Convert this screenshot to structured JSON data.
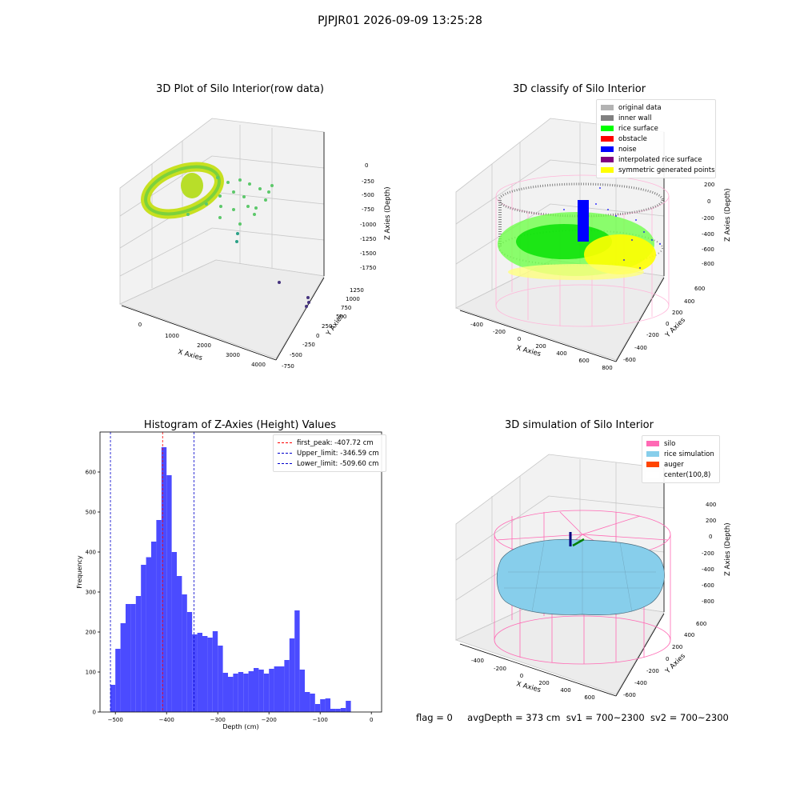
{
  "header": {
    "title": "PJPJR01 2026-09-09 13:25:28"
  },
  "panels": {
    "raw": {
      "title": "3D Plot of Silo Interior(row data)",
      "xlabel": "X Axies",
      "ylabel": "Y Axies",
      "zlabel": "Z Axies (Depth)",
      "xticks": [
        "0",
        "1000",
        "2000",
        "3000",
        "4000"
      ],
      "yticks": [
        "1250",
        "1000",
        "750",
        "500",
        "250",
        "0",
        "-250",
        "-500",
        "-750"
      ],
      "zticks": [
        "0",
        "-250",
        "-500",
        "-750",
        "-1000",
        "-1250",
        "-1500",
        "-1750"
      ]
    },
    "classify": {
      "title": "3D classify of Silo Interior",
      "xlabel": "X Axies",
      "ylabel": "Y Axies",
      "zlabel": "Z Axies (Depth)",
      "xticks": [
        "-400",
        "-200",
        "0",
        "200",
        "400",
        "600",
        "800"
      ],
      "yticks": [
        "600",
        "400",
        "200",
        "0",
        "-200",
        "-400",
        "-600"
      ],
      "zticks": [
        "200",
        "0",
        "-200",
        "-400",
        "-600",
        "-800"
      ],
      "legend": [
        {
          "label": "original data",
          "color": "#b3b3b3"
        },
        {
          "label": "inner wall",
          "color": "#808080"
        },
        {
          "label": "rice surface",
          "color": "#00ff00"
        },
        {
          "label": "obstacle",
          "color": "#ff0000"
        },
        {
          "label": "noise",
          "color": "#0000ff"
        },
        {
          "label": "interpolated rice surface",
          "color": "#800080"
        },
        {
          "label": "symmetric generated points",
          "color": "#ffff00"
        }
      ]
    },
    "simulation": {
      "title": "3D simulation of Silo Interior",
      "xlabel": "X Axies",
      "ylabel": "Y Axies",
      "zlabel": "Z Axies (Depth)",
      "xticks": [
        "-400",
        "-200",
        "0",
        "200",
        "400",
        "600"
      ],
      "yticks": [
        "600",
        "400",
        "200",
        "0",
        "-200",
        "-400",
        "-600"
      ],
      "zticks": [
        "400",
        "200",
        "0",
        "-200",
        "-400",
        "-600",
        "-800"
      ],
      "legend": [
        {
          "label": "silo",
          "color": "#ff69b4"
        },
        {
          "label": "rice simulation",
          "color": "#87ceeb"
        },
        {
          "label": "auger",
          "color": "#ff4500"
        },
        {
          "label": "center(100,8)",
          "color": "#ffffff"
        }
      ]
    }
  },
  "footer": {
    "flag": "flag = 0",
    "avg_depth": "avgDepth = 373 cm",
    "sv1": "sv1 = 700~2300",
    "sv2": "sv2 = 700~2300"
  },
  "chart_data": {
    "type": "bar",
    "title": "Histogram of Z-Axies (Height) Values",
    "xlabel": "Depth (cm)",
    "ylabel": "Frequency",
    "xlim": [
      -530,
      20
    ],
    "ylim": [
      0,
      700
    ],
    "xticks": [
      -500,
      -400,
      -300,
      -200,
      -100,
      0
    ],
    "yticks": [
      0,
      100,
      200,
      300,
      400,
      500,
      600
    ],
    "bar_color": "#4b4bff",
    "bin_width": 10,
    "bin_start": -510,
    "values": [
      68,
      158,
      222,
      270,
      270,
      290,
      368,
      387,
      426,
      480,
      662,
      592,
      400,
      340,
      294,
      250,
      194,
      198,
      190,
      186,
      202,
      166,
      98,
      88,
      96,
      100,
      96,
      102,
      110,
      106,
      96,
      108,
      114,
      114,
      130,
      184,
      254,
      106,
      50,
      46,
      20,
      32,
      34,
      8,
      8,
      10,
      28
    ],
    "lines": [
      {
        "label": "first_peak: -407.72 cm",
        "x": -407.72,
        "color": "#ff0000"
      },
      {
        "label": "Upper_limit: -346.59 cm",
        "x": -346.59,
        "color": "#0000cc"
      },
      {
        "label": "Lower_limit: -509.60 cm",
        "x": -509.6,
        "color": "#0000cc"
      }
    ],
    "legend_position": "top-right"
  }
}
